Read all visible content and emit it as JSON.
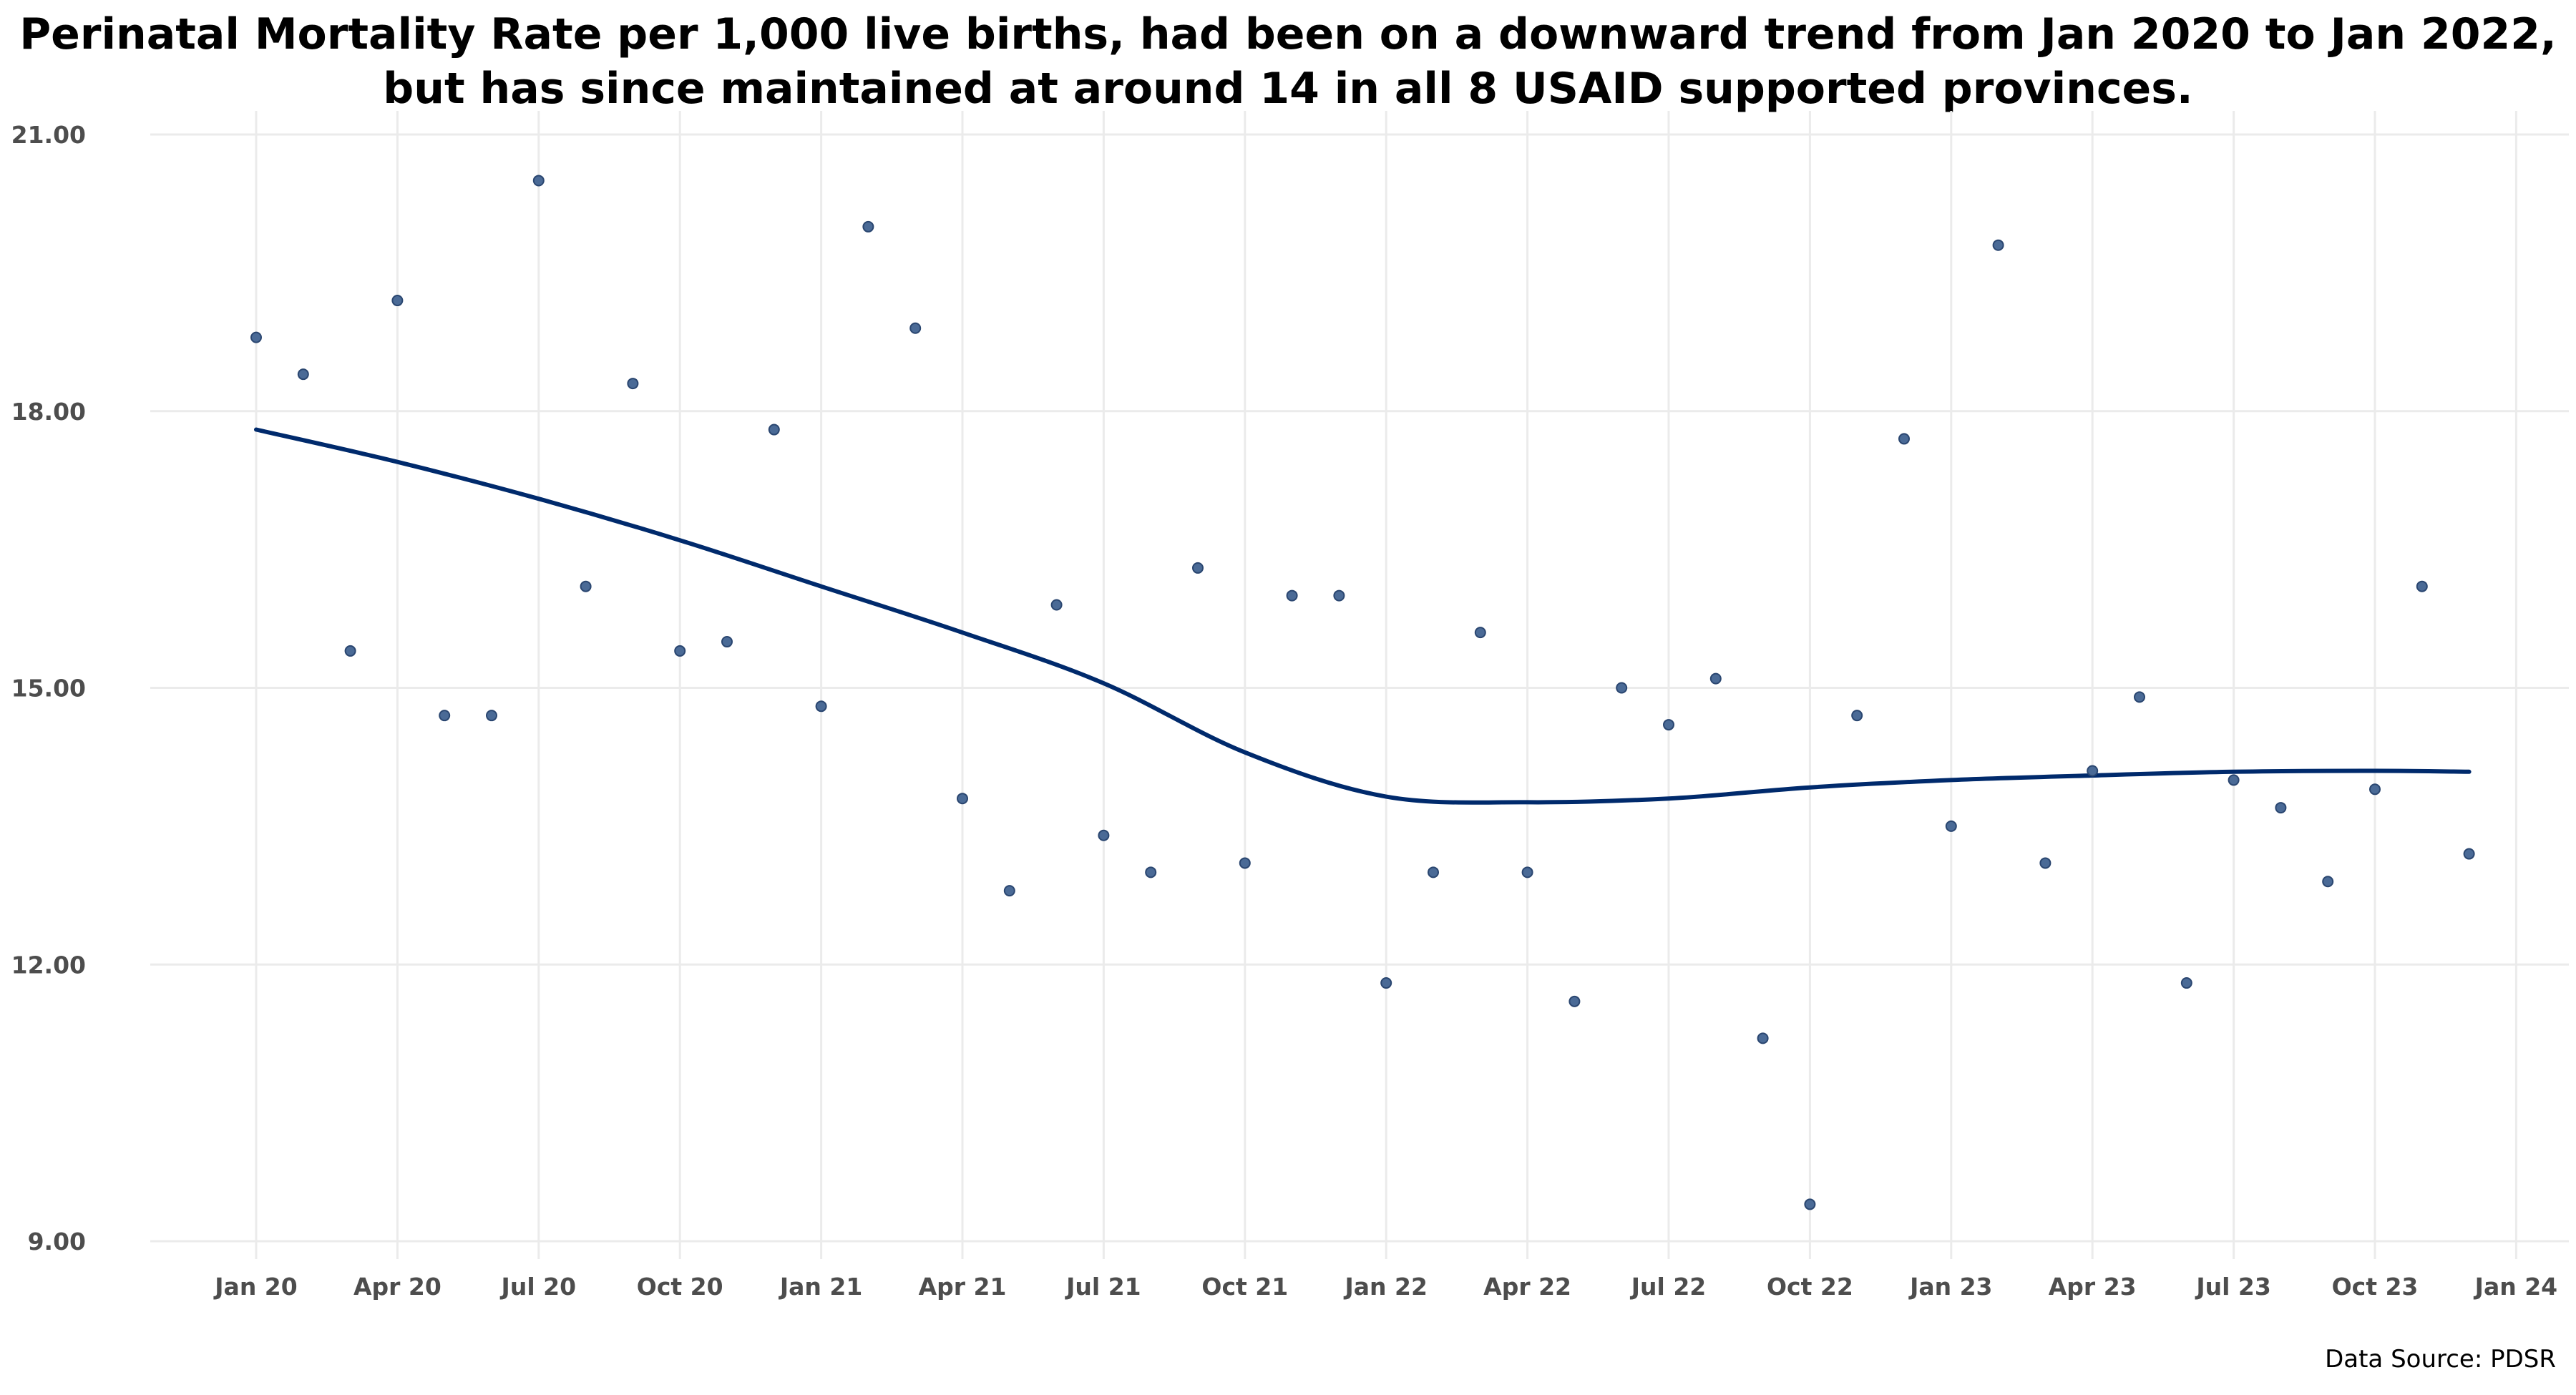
{
  "chart_data": {
    "type": "scatter",
    "title_lines": [
      "Perinatal Mortality Rate per 1,000 live births, had been on a downward trend from Jan 2020 to Jan 2022,",
      "but has since maintained at around 14 in all 8 USAID supported provinces."
    ],
    "xlabel": "",
    "ylabel": "",
    "x_ticks": [
      "Jan 20",
      "Apr 20",
      "Jul 20",
      "Oct 20",
      "Jan 21",
      "Apr 21",
      "Jul 21",
      "Oct 21",
      "Jan 22",
      "Apr 22",
      "Jul 22",
      "Oct 22",
      "Jan 23",
      "Apr 23",
      "Jul 23",
      "Oct 23",
      "Jan 24"
    ],
    "y_ticks": [
      "9.00",
      "12.00",
      "15.00",
      "18.00",
      "21.00"
    ],
    "ylim": [
      9,
      21
    ],
    "x_range": [
      "2019-11",
      "2024-02"
    ],
    "grid": true,
    "point_color": "#4a6a96",
    "trend_color": "#002a6c",
    "points": [
      {
        "x": "2020-01",
        "y": 18.8
      },
      {
        "x": "2020-02",
        "y": 18.4
      },
      {
        "x": "2020-03",
        "y": 15.4
      },
      {
        "x": "2020-04",
        "y": 19.2
      },
      {
        "x": "2020-05",
        "y": 14.7
      },
      {
        "x": "2020-06",
        "y": 14.7
      },
      {
        "x": "2020-07",
        "y": 20.5
      },
      {
        "x": "2020-08",
        "y": 16.1
      },
      {
        "x": "2020-09",
        "y": 18.3
      },
      {
        "x": "2020-10",
        "y": 15.4
      },
      {
        "x": "2020-11",
        "y": 15.5
      },
      {
        "x": "2020-12",
        "y": 17.8
      },
      {
        "x": "2021-01",
        "y": 14.8
      },
      {
        "x": "2021-02",
        "y": 20.0
      },
      {
        "x": "2021-03",
        "y": 18.9
      },
      {
        "x": "2021-04",
        "y": 13.8
      },
      {
        "x": "2021-05",
        "y": 12.8
      },
      {
        "x": "2021-06",
        "y": 15.9
      },
      {
        "x": "2021-07",
        "y": 13.4
      },
      {
        "x": "2021-08",
        "y": 13.0
      },
      {
        "x": "2021-09",
        "y": 16.3
      },
      {
        "x": "2021-10",
        "y": 13.1
      },
      {
        "x": "2021-11",
        "y": 16.0
      },
      {
        "x": "2021-12",
        "y": 16.0
      },
      {
        "x": "2022-01",
        "y": 11.8
      },
      {
        "x": "2022-02",
        "y": 13.0
      },
      {
        "x": "2022-03",
        "y": 15.6
      },
      {
        "x": "2022-04",
        "y": 13.0
      },
      {
        "x": "2022-05",
        "y": 11.6
      },
      {
        "x": "2022-06",
        "y": 15.0
      },
      {
        "x": "2022-07",
        "y": 14.6
      },
      {
        "x": "2022-08",
        "y": 15.1
      },
      {
        "x": "2022-09",
        "y": 11.2
      },
      {
        "x": "2022-10",
        "y": 9.4
      },
      {
        "x": "2022-11",
        "y": 14.7
      },
      {
        "x": "2022-12",
        "y": 17.7
      },
      {
        "x": "2023-01",
        "y": 13.5
      },
      {
        "x": "2023-02",
        "y": 19.8
      },
      {
        "x": "2023-03",
        "y": 13.1
      },
      {
        "x": "2023-04",
        "y": 14.1
      },
      {
        "x": "2023-05",
        "y": 14.9
      },
      {
        "x": "2023-06",
        "y": 11.8
      },
      {
        "x": "2023-07",
        "y": 14.0
      },
      {
        "x": "2023-08",
        "y": 13.7
      },
      {
        "x": "2023-09",
        "y": 12.9
      },
      {
        "x": "2023-10",
        "y": 13.9
      },
      {
        "x": "2023-11",
        "y": 16.1
      },
      {
        "x": "2023-12",
        "y": 13.2
      }
    ],
    "trend": [
      {
        "x": "2020-01",
        "y": 17.8
      },
      {
        "x": "2020-04",
        "y": 17.45
      },
      {
        "x": "2020-07",
        "y": 17.05
      },
      {
        "x": "2020-10",
        "y": 16.6
      },
      {
        "x": "2021-01",
        "y": 16.1
      },
      {
        "x": "2021-04",
        "y": 15.6
      },
      {
        "x": "2021-07",
        "y": 15.05
      },
      {
        "x": "2021-10",
        "y": 14.3
      },
      {
        "x": "2022-01",
        "y": 13.82
      },
      {
        "x": "2022-04",
        "y": 13.76
      },
      {
        "x": "2022-07",
        "y": 13.8
      },
      {
        "x": "2022-10",
        "y": 13.92
      },
      {
        "x": "2023-01",
        "y": 14.0
      },
      {
        "x": "2023-04",
        "y": 14.05
      },
      {
        "x": "2023-07",
        "y": 14.09
      },
      {
        "x": "2023-10",
        "y": 14.1
      },
      {
        "x": "2023-12",
        "y": 14.09
      }
    ],
    "source_note": "Data Source: PDSR"
  }
}
